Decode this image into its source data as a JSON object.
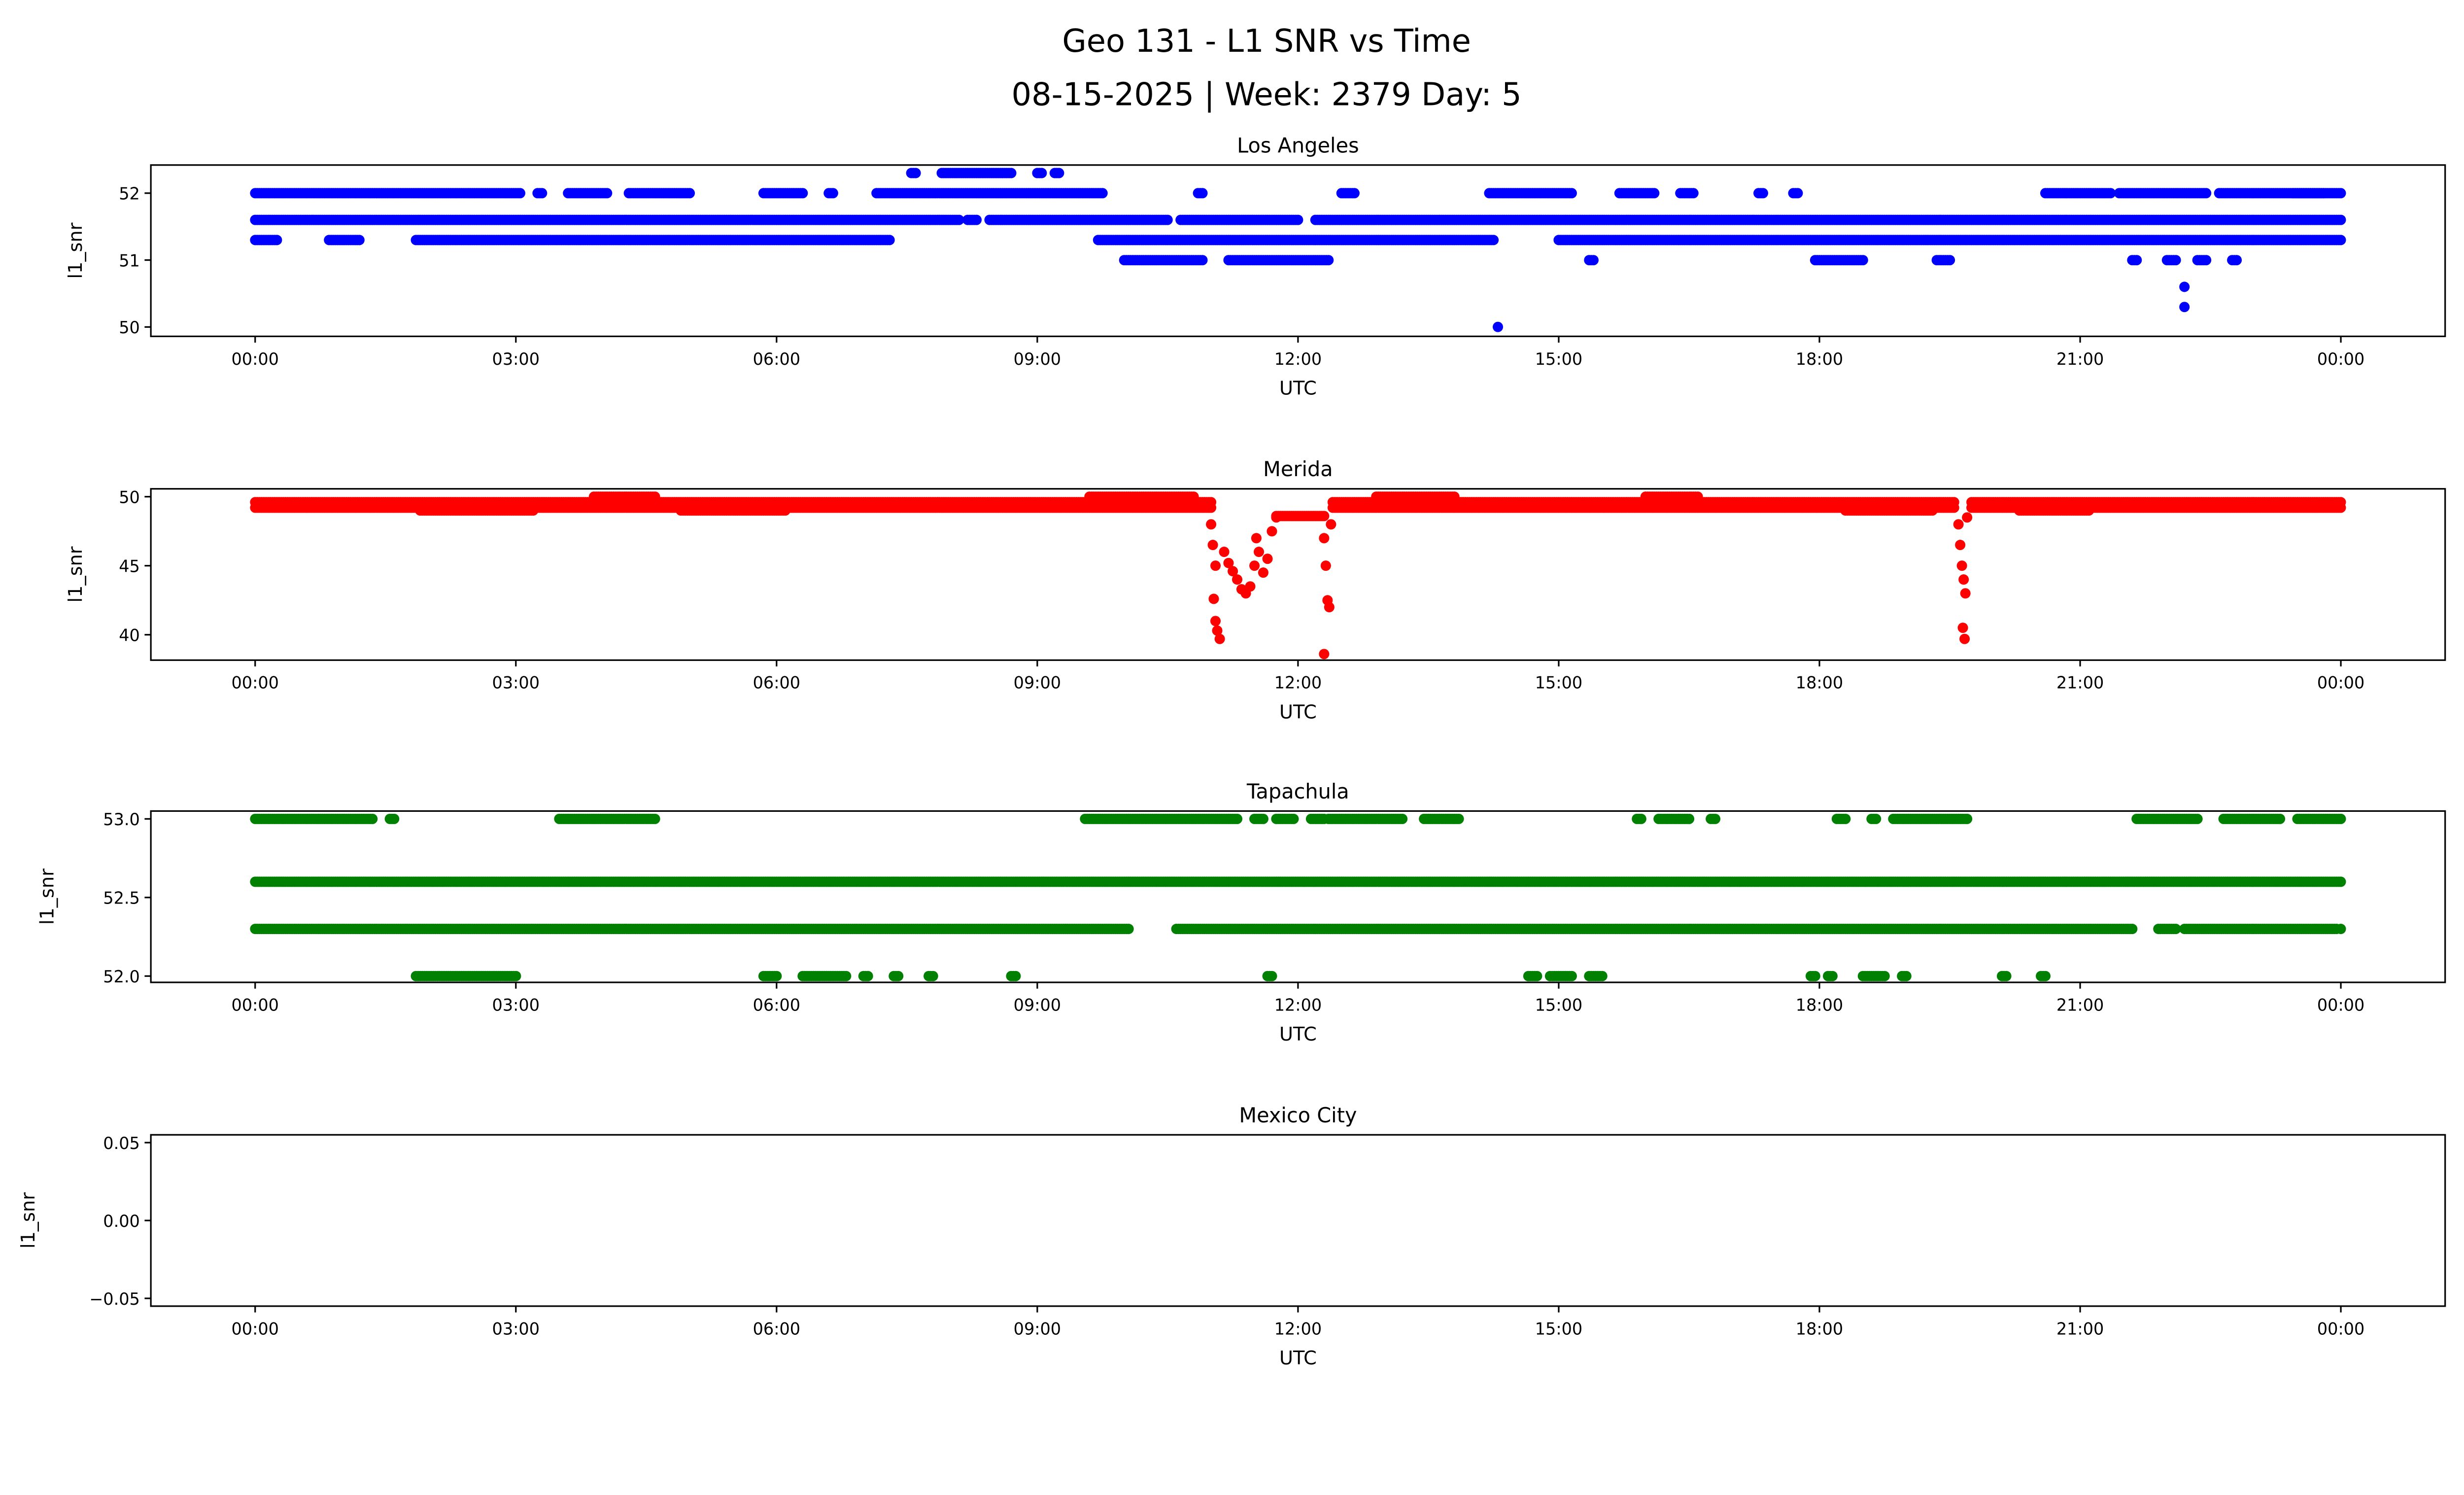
{
  "figure": {
    "title_line1": "Geo 131 - L1 SNR vs Time",
    "title_line2": "08-15-2025 | Week: 2379 Day: 5"
  },
  "chart_data": [
    {
      "type": "scatter",
      "title": "Los Angeles",
      "xlabel": "UTC",
      "ylabel": "l1_snr",
      "color": "#0000ff",
      "xlim": [
        -1.2,
        25.2
      ],
      "ylim": [
        49.86,
        52.42
      ],
      "xticks": [
        "00:00",
        "03:00",
        "06:00",
        "09:00",
        "12:00",
        "15:00",
        "18:00",
        "21:00",
        "00:00"
      ],
      "yticks": [
        {
          "v": 50,
          "label": "50"
        },
        {
          "v": 51,
          "label": "51"
        },
        {
          "v": 52,
          "label": "52"
        }
      ],
      "segments": [
        {
          "y": 52.3,
          "ranges": [
            [
              7.55,
              7.6
            ],
            [
              7.9,
              8.7
            ],
            [
              9.0,
              9.05
            ],
            [
              9.2,
              9.25
            ]
          ]
        },
        {
          "y": 52.0,
          "ranges": [
            [
              0,
              3.05
            ],
            [
              3.25,
              3.3
            ],
            [
              3.6,
              4.05
            ],
            [
              4.3,
              5.0
            ],
            [
              5.85,
              6.3
            ],
            [
              6.6,
              6.65
            ],
            [
              7.15,
              9.75
            ],
            [
              10.85,
              10.9
            ],
            [
              12.5,
              12.65
            ],
            [
              14.2,
              15.15
            ],
            [
              15.7,
              16.1
            ],
            [
              16.4,
              16.55
            ],
            [
              17.3,
              17.35
            ],
            [
              17.7,
              17.75
            ],
            [
              20.6,
              21.35
            ],
            [
              21.45,
              22.45
            ],
            [
              22.6,
              23.8
            ],
            [
              23.45,
              24
            ]
          ]
        },
        {
          "y": 51.6,
          "ranges": [
            [
              0,
              8.1
            ],
            [
              8.2,
              8.3
            ],
            [
              8.45,
              10.5
            ],
            [
              10.65,
              12.0
            ],
            [
              12.2,
              24
            ]
          ]
        },
        {
          "y": 51.3,
          "ranges": [
            [
              0,
              0.25
            ],
            [
              0.85,
              1.2
            ],
            [
              1.85,
              7.3
            ],
            [
              9.7,
              14.25
            ],
            [
              15.0,
              24
            ]
          ]
        },
        {
          "y": 51.0,
          "ranges": [
            [
              10.0,
              10.9
            ],
            [
              11.2,
              12.35
            ],
            [
              15.35,
              15.4
            ],
            [
              17.95,
              18.5
            ],
            [
              19.35,
              19.5
            ],
            [
              21.6,
              21.65
            ],
            [
              22.0,
              22.1
            ],
            [
              22.35,
              22.45
            ],
            [
              22.75,
              22.8
            ]
          ]
        }
      ],
      "points": [
        [
          14.3,
          50.0
        ],
        [
          22.2,
          50.6
        ],
        [
          22.2,
          50.3
        ]
      ]
    },
    {
      "type": "scatter",
      "title": "Merida",
      "xlabel": "UTC",
      "ylabel": "l1_snr",
      "color": "#ff0000",
      "xlim": [
        -1.2,
        25.2
      ],
      "ylim": [
        38.16,
        50.57
      ],
      "xticks": [
        "00:00",
        "03:00",
        "06:00",
        "09:00",
        "12:00",
        "15:00",
        "18:00",
        "21:00",
        "00:00"
      ],
      "yticks": [
        {
          "v": 40,
          "label": "40"
        },
        {
          "v": 45,
          "label": "45"
        },
        {
          "v": 50,
          "label": "50"
        }
      ],
      "segments": [
        {
          "y": 49.6,
          "ranges": [
            [
              0,
              11.0
            ],
            [
              12.4,
              19.55
            ],
            [
              19.75,
              24
            ]
          ]
        },
        {
          "y": 49.2,
          "ranges": [
            [
              0,
              11.0
            ],
            [
              12.4,
              19.55
            ],
            [
              19.75,
              24
            ]
          ]
        },
        {
          "y": 49.0,
          "ranges": [
            [
              1.9,
              3.2
            ],
            [
              4.9,
              6.1
            ],
            [
              18.3,
              19.3
            ],
            [
              20.3,
              21.1
            ]
          ]
        },
        {
          "y": 50.0,
          "ranges": [
            [
              3.9,
              4.6
            ],
            [
              9.6,
              10.8
            ],
            [
              12.9,
              13.8
            ],
            [
              16.0,
              16.6
            ]
          ]
        },
        {
          "y": 48.6,
          "ranges": [
            [
              11.75,
              12.3
            ]
          ]
        }
      ],
      "points": [
        [
          11.0,
          48.0
        ],
        [
          11.02,
          46.5
        ],
        [
          11.05,
          45.0
        ],
        [
          11.03,
          42.6
        ],
        [
          11.05,
          41.0
        ],
        [
          11.07,
          40.3
        ],
        [
          11.1,
          39.7
        ],
        [
          11.15,
          46.0
        ],
        [
          11.2,
          45.2
        ],
        [
          11.25,
          44.6
        ],
        [
          11.3,
          44.0
        ],
        [
          11.35,
          43.3
        ],
        [
          11.4,
          43.0
        ],
        [
          11.45,
          43.5
        ],
        [
          11.5,
          45.0
        ],
        [
          11.52,
          47.0
        ],
        [
          11.55,
          46.0
        ],
        [
          11.6,
          44.5
        ],
        [
          11.65,
          45.5
        ],
        [
          11.7,
          47.5
        ],
        [
          11.75,
          48.5
        ],
        [
          12.3,
          47.0
        ],
        [
          12.32,
          45.0
        ],
        [
          12.34,
          42.5
        ],
        [
          12.36,
          42.0
        ],
        [
          12.3,
          38.6
        ],
        [
          12.38,
          48.0
        ],
        [
          19.6,
          48.0
        ],
        [
          19.62,
          46.5
        ],
        [
          19.64,
          45.0
        ],
        [
          19.66,
          44.0
        ],
        [
          19.68,
          43.0
        ],
        [
          19.65,
          40.5
        ],
        [
          19.67,
          39.7
        ],
        [
          19.7,
          48.5
        ]
      ]
    },
    {
      "type": "scatter",
      "title": "Tapachula",
      "xlabel": "UTC",
      "ylabel": "l1_snr",
      "color": "#008000",
      "xlim": [
        -1.2,
        25.2
      ],
      "ylim": [
        51.96,
        53.05
      ],
      "xticks": [
        "00:00",
        "03:00",
        "06:00",
        "09:00",
        "12:00",
        "15:00",
        "18:00",
        "21:00",
        "00:00"
      ],
      "yticks": [
        {
          "v": 52.0,
          "label": "52.0"
        },
        {
          "v": 52.5,
          "label": "52.5"
        },
        {
          "v": 53.0,
          "label": "53.0"
        }
      ],
      "segments": [
        {
          "y": 53.0,
          "ranges": [
            [
              0,
              1.35
            ],
            [
              1.55,
              1.6
            ],
            [
              3.5,
              4.6
            ],
            [
              9.55,
              11.3
            ],
            [
              11.5,
              11.6
            ],
            [
              11.75,
              11.95
            ],
            [
              12.15,
              12.3
            ],
            [
              12.35,
              13.2
            ],
            [
              13.45,
              13.85
            ],
            [
              15.9,
              15.95
            ],
            [
              16.15,
              16.5
            ],
            [
              16.75,
              16.8
            ],
            [
              18.2,
              18.3
            ],
            [
              18.6,
              18.65
            ],
            [
              18.85,
              19.7
            ],
            [
              21.65,
              22.35
            ],
            [
              22.65,
              23.3
            ],
            [
              23.5,
              24
            ]
          ]
        },
        {
          "y": 52.6,
          "ranges": [
            [
              0,
              24
            ]
          ]
        },
        {
          "y": 52.3,
          "ranges": [
            [
              0,
              10.05
            ],
            [
              10.6,
              21.6
            ],
            [
              21.9,
              22.1
            ],
            [
              22.2,
              23.95
            ]
          ]
        },
        {
          "y": 52.0,
          "ranges": [
            [
              1.85,
              3.0
            ],
            [
              5.85,
              6.0
            ],
            [
              6.3,
              6.8
            ],
            [
              7.0,
              7.05
            ],
            [
              7.35,
              7.4
            ],
            [
              7.75,
              7.8
            ],
            [
              8.7,
              8.75
            ],
            [
              11.65,
              11.7
            ],
            [
              14.65,
              14.75
            ],
            [
              14.9,
              15.15
            ],
            [
              15.35,
              15.5
            ],
            [
              17.9,
              17.95
            ],
            [
              18.1,
              18.15
            ],
            [
              18.5,
              18.75
            ],
            [
              18.95,
              19.0
            ],
            [
              20.1,
              20.15
            ],
            [
              20.55,
              20.6
            ]
          ]
        }
      ],
      "points": [
        [
          24,
          52.3
        ]
      ]
    },
    {
      "type": "scatter",
      "title": "Mexico City",
      "xlabel": "UTC",
      "ylabel": "l1_snr",
      "color": "#000000",
      "xlim": [
        -1.2,
        25.2
      ],
      "ylim": [
        -0.055,
        0.055
      ],
      "xticks": [
        "00:00",
        "03:00",
        "06:00",
        "09:00",
        "12:00",
        "15:00",
        "18:00",
        "21:00",
        "00:00"
      ],
      "yticks": [
        {
          "v": -0.05,
          "label": "−0.05"
        },
        {
          "v": 0,
          "label": "0.00"
        },
        {
          "v": 0.05,
          "label": "0.05"
        }
      ],
      "segments": [],
      "points": []
    }
  ]
}
